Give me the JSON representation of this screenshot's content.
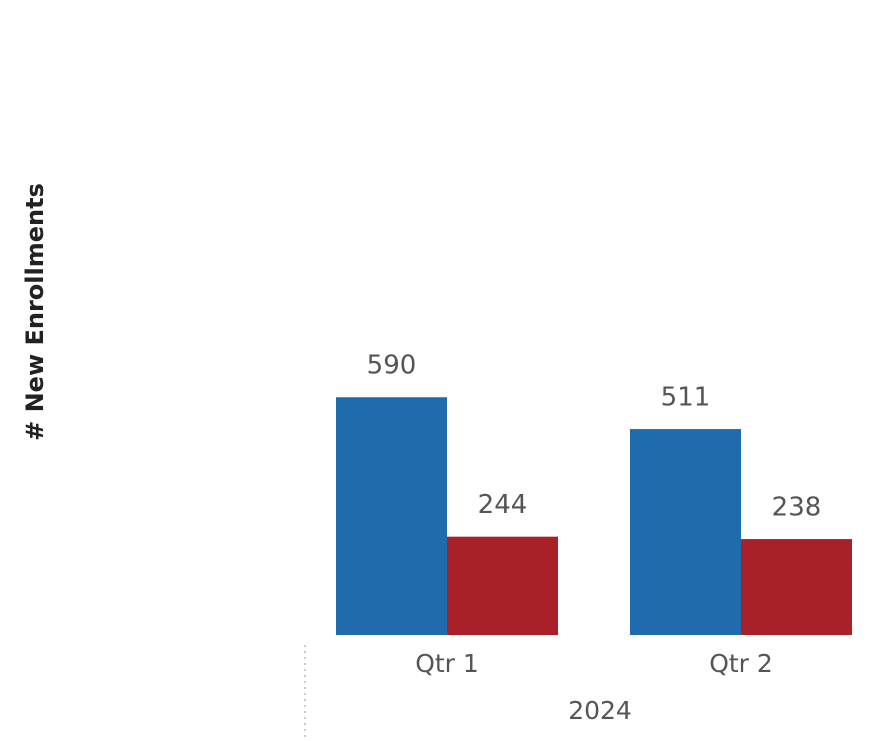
{
  "chart_data": {
    "type": "bar",
    "y_label": "# New Enrollments",
    "categories": [
      "Qtr 1",
      "Qtr 2"
    ],
    "category_group": "2024",
    "series": [
      {
        "color": "#1f6bad",
        "values": [
          590,
          511
        ]
      },
      {
        "color": "#a82128",
        "values": [
          244,
          238
        ]
      }
    ],
    "ylim": [
      0,
      1000
    ]
  }
}
